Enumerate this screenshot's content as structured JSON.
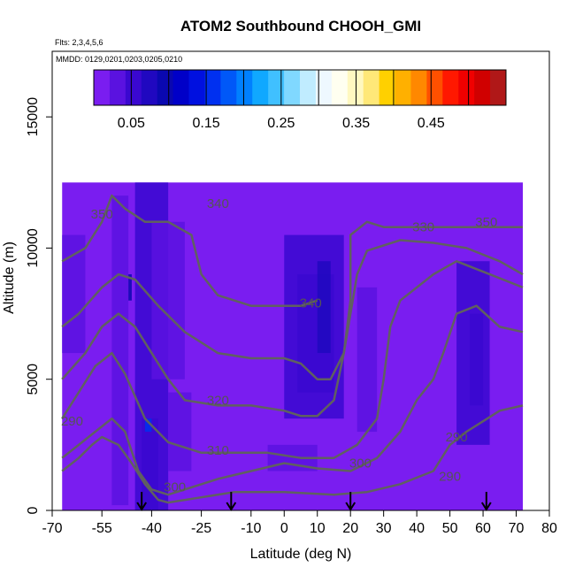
{
  "chart_data": {
    "type": "heatmap",
    "title": "ATOM2 Southbound CHOOH_GMI",
    "subtitle_lines": [
      "Flts: 2,3,4,5,6",
      "MMDD: 0129,0201,0203,0205,0210"
    ],
    "xlabel": "Latitude (deg N)",
    "ylabel": "Altitude (m)",
    "xlim": [
      -70,
      80
    ],
    "ylim": [
      0,
      17500
    ],
    "x_ticks": [
      -70,
      -55,
      -40,
      -25,
      -10,
      0,
      10,
      20,
      30,
      40,
      50,
      60,
      70,
      80
    ],
    "x_tick_labels": [
      "-70",
      "-55",
      "-40",
      "-25",
      "-10",
      "0",
      "10",
      "20",
      "30",
      "40",
      "50",
      "60",
      "70",
      "80"
    ],
    "y_ticks": [
      0,
      5000,
      10000,
      15000
    ],
    "y_tick_labels": [
      "0",
      "5000",
      "10000",
      "15000"
    ],
    "colorbar": {
      "range": [
        0,
        0.55
      ],
      "tick_values": [
        0.05,
        0.15,
        0.25,
        0.35,
        0.45
      ],
      "tick_labels": [
        "0.05",
        "0.15",
        "0.25",
        "0.35",
        "0.45"
      ],
      "colors": [
        "#7a1df0",
        "#5a12e0",
        "#3a08d0",
        "#2008c0",
        "#0a08b0",
        "#0000c8",
        "#0010e0",
        "#0030f0",
        "#0058f8",
        "#0080ff",
        "#10a8ff",
        "#40c0ff",
        "#80d8ff",
        "#c0ecff",
        "#eef8ff",
        "#fffff0",
        "#fff8c0",
        "#ffe878",
        "#ffd000",
        "#ffb000",
        "#ff8800",
        "#ff5000",
        "#ff1800",
        "#f00000",
        "#d00000",
        "#b01818"
      ]
    },
    "data_extent": {
      "lat_range": [
        -67,
        72
      ],
      "alt_max": 12500
    },
    "concentration_bands": [
      {
        "lat_range": [
          -52,
          -47
        ],
        "alt_range": [
          200,
          12000
        ],
        "value": 0.04
      },
      {
        "lat_range": [
          -45,
          -35
        ],
        "alt_range": [
          0,
          12500
        ],
        "value": 0.05
      },
      {
        "lat_range": [
          -43,
          -38
        ],
        "alt_range": [
          0,
          3500
        ],
        "value": 0.06
      },
      {
        "lat_range": [
          -47,
          -46
        ],
        "alt_range": [
          8000,
          9000
        ],
        "value": 0.1
      },
      {
        "lat_range": [
          -42,
          -40
        ],
        "alt_range": [
          3000,
          3500
        ],
        "value": 0.15
      },
      {
        "lat_range": [
          -35,
          -28
        ],
        "alt_range": [
          1500,
          4500
        ],
        "value": 0.04
      },
      {
        "lat_range": [
          -40,
          -30
        ],
        "alt_range": [
          5000,
          11000
        ],
        "value": 0.035
      },
      {
        "lat_range": [
          0,
          18
        ],
        "alt_range": [
          3500,
          10500
        ],
        "value": 0.045
      },
      {
        "lat_range": [
          4,
          15
        ],
        "alt_range": [
          4500,
          9000
        ],
        "value": 0.055
      },
      {
        "lat_range": [
          10,
          14
        ],
        "alt_range": [
          6000,
          9500
        ],
        "value": 0.07
      },
      {
        "lat_range": [
          22,
          28
        ],
        "alt_range": [
          3000,
          8500
        ],
        "value": 0.04
      },
      {
        "lat_range": [
          52,
          62
        ],
        "alt_range": [
          2500,
          9500
        ],
        "value": 0.045
      },
      {
        "lat_range": [
          56,
          60
        ],
        "alt_range": [
          4000,
          7500
        ],
        "value": 0.055
      },
      {
        "lat_range": [
          -67,
          -60
        ],
        "alt_range": [
          6000,
          10500
        ],
        "value": 0.035
      },
      {
        "lat_range": [
          -5,
          10
        ],
        "alt_range": [
          1500,
          2500
        ],
        "value": 0.035
      }
    ],
    "contours": [
      {
        "label": "340",
        "points": [
          [
            -67,
            9500
          ],
          [
            -60,
            10000
          ],
          [
            -55,
            11000
          ],
          [
            -52,
            12000
          ],
          [
            -48,
            11500
          ],
          [
            -42,
            11000
          ],
          [
            -35,
            11000
          ],
          [
            -28,
            10500
          ],
          [
            -25,
            9000
          ],
          [
            -20,
            8200
          ],
          [
            -10,
            7800
          ],
          [
            0,
            7800
          ],
          [
            5,
            7800
          ],
          [
            10,
            8000
          ]
        ]
      },
      {
        "label": "330",
        "points": [
          [
            -67,
            7000
          ],
          [
            -62,
            7500
          ],
          [
            -55,
            8500
          ],
          [
            -50,
            9000
          ],
          [
            -45,
            8800
          ],
          [
            -38,
            7800
          ],
          [
            -30,
            6800
          ],
          [
            -20,
            6000
          ],
          [
            -10,
            5800
          ],
          [
            0,
            5800
          ],
          [
            5,
            5600
          ],
          [
            10,
            5000
          ],
          [
            14,
            5000
          ],
          [
            18,
            6000
          ],
          [
            20,
            8000
          ],
          [
            20,
            10500
          ],
          [
            25,
            11000
          ],
          [
            30,
            10800
          ],
          [
            45,
            10800
          ],
          [
            58,
            10800
          ],
          [
            72,
            10800
          ]
        ]
      },
      {
        "label": "320",
        "points": [
          [
            -67,
            5000
          ],
          [
            -60,
            6000
          ],
          [
            -55,
            7000
          ],
          [
            -50,
            7500
          ],
          [
            -45,
            7000
          ],
          [
            -40,
            6000
          ],
          [
            -35,
            5000
          ],
          [
            -30,
            4200
          ],
          [
            -20,
            4000
          ],
          [
            -10,
            4000
          ],
          [
            0,
            3800
          ],
          [
            5,
            3600
          ],
          [
            10,
            3600
          ],
          [
            15,
            4200
          ],
          [
            18,
            6000
          ],
          [
            22,
            9000
          ],
          [
            25,
            9900
          ],
          [
            35,
            10300
          ],
          [
            45,
            10200
          ],
          [
            55,
            10000
          ],
          [
            65,
            9500
          ],
          [
            72,
            9000
          ]
        ]
      },
      {
        "label": "310",
        "points": [
          [
            -67,
            3500
          ],
          [
            -62,
            4500
          ],
          [
            -57,
            5500
          ],
          [
            -52,
            6000
          ],
          [
            -48,
            5200
          ],
          [
            -42,
            3500
          ],
          [
            -35,
            2600
          ],
          [
            -25,
            2200
          ],
          [
            -15,
            2200
          ],
          [
            -5,
            2200
          ],
          [
            5,
            2000
          ],
          [
            15,
            2000
          ],
          [
            22,
            2500
          ],
          [
            28,
            3500
          ],
          [
            30,
            5000
          ],
          [
            32,
            7000
          ],
          [
            35,
            8000
          ],
          [
            45,
            9000
          ],
          [
            52,
            9500
          ],
          [
            62,
            9000
          ],
          [
            72,
            8500
          ]
        ]
      },
      {
        "label": "300",
        "points": [
          [
            -67,
            2000
          ],
          [
            -62,
            2500
          ],
          [
            -57,
            3000
          ],
          [
            -52,
            3500
          ],
          [
            -48,
            3000
          ],
          [
            -44,
            1500
          ],
          [
            -40,
            800
          ],
          [
            -35,
            600
          ],
          [
            -30,
            800
          ],
          [
            -20,
            1200
          ],
          [
            -10,
            1500
          ],
          [
            0,
            1800
          ],
          [
            10,
            1600
          ],
          [
            20,
            1500
          ],
          [
            28,
            2000
          ],
          [
            35,
            3000
          ],
          [
            40,
            4200
          ],
          [
            45,
            5000
          ],
          [
            48,
            6000
          ],
          [
            52,
            7500
          ],
          [
            58,
            7800
          ],
          [
            65,
            7000
          ],
          [
            72,
            6800
          ]
        ]
      },
      {
        "label": "290",
        "points": [
          [
            -67,
            1500
          ],
          [
            -62,
            2000
          ],
          [
            -58,
            2500
          ],
          [
            -55,
            2800
          ],
          [
            -50,
            2500
          ],
          [
            -46,
            1800
          ],
          [
            -42,
            1000
          ],
          [
            -38,
            400
          ],
          [
            -35,
            300
          ],
          [
            -25,
            500
          ],
          [
            -15,
            700
          ],
          [
            0,
            700
          ],
          [
            15,
            600
          ],
          [
            25,
            700
          ],
          [
            35,
            1000
          ],
          [
            45,
            1500
          ],
          [
            50,
            2500
          ],
          [
            55,
            3000
          ],
          [
            60,
            3400
          ],
          [
            65,
            3800
          ],
          [
            72,
            4000
          ]
        ]
      }
    ],
    "contour_labels": [
      {
        "text": "340",
        "lat": -20,
        "alt": 11700
      },
      {
        "text": "340",
        "lat": 8,
        "alt": 7900
      },
      {
        "text": "330",
        "lat": 42,
        "alt": 10800
      },
      {
        "text": "350",
        "lat": 61,
        "alt": 11000
      },
      {
        "text": "320",
        "lat": -20,
        "alt": 4200
      },
      {
        "text": "310",
        "lat": -20,
        "alt": 2300
      },
      {
        "text": "300",
        "lat": -33,
        "alt": 900
      },
      {
        "text": "300",
        "lat": 23,
        "alt": 1800
      },
      {
        "text": "290",
        "lat": -64,
        "alt": 3400
      },
      {
        "text": "290",
        "lat": 52,
        "alt": 2800
      },
      {
        "text": "290",
        "lat": 50,
        "alt": 1300
      },
      {
        "text": "350",
        "lat": -55,
        "alt": 11300
      }
    ],
    "markers": {
      "type": "down-arrow",
      "latitudes": [
        -43,
        -16,
        20,
        61
      ]
    }
  }
}
